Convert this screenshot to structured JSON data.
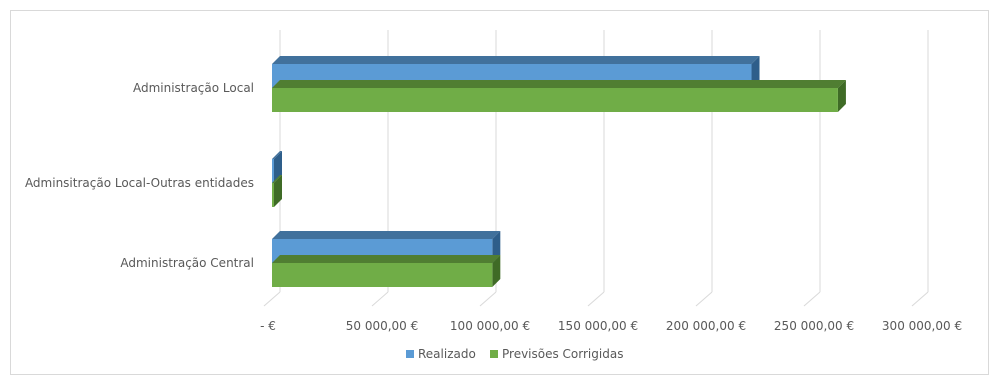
{
  "chart_data": {
    "type": "bar",
    "orientation": "horizontal",
    "style": "3d-clustered",
    "categories": [
      "Administração Central",
      "Adminsitração Local-Outras entidades",
      "Administração Local"
    ],
    "series": [
      {
        "name": "Realizado",
        "values": [
          102000,
          0,
          222000
        ],
        "color": "#5b9bd5",
        "side_color": "#2e5e8a",
        "top_color": "#41719c"
      },
      {
        "name": "Previsões Corrigidas",
        "values": [
          102000,
          0,
          262000
        ],
        "color": "#70ad47",
        "side_color": "#3f6b26",
        "top_color": "#507e32"
      }
    ],
    "xlim": [
      0,
      300000
    ],
    "x_ticks": [
      0,
      50000,
      100000,
      150000,
      200000,
      250000,
      300000
    ],
    "x_tick_labels": [
      "-  €",
      "50 000,00 €",
      "100 000,00 €",
      "150 000,00 €",
      "200 000,00 €",
      "250 000,00 €",
      "300 000,00 €"
    ],
    "grid": true,
    "legend_position": "bottom"
  }
}
